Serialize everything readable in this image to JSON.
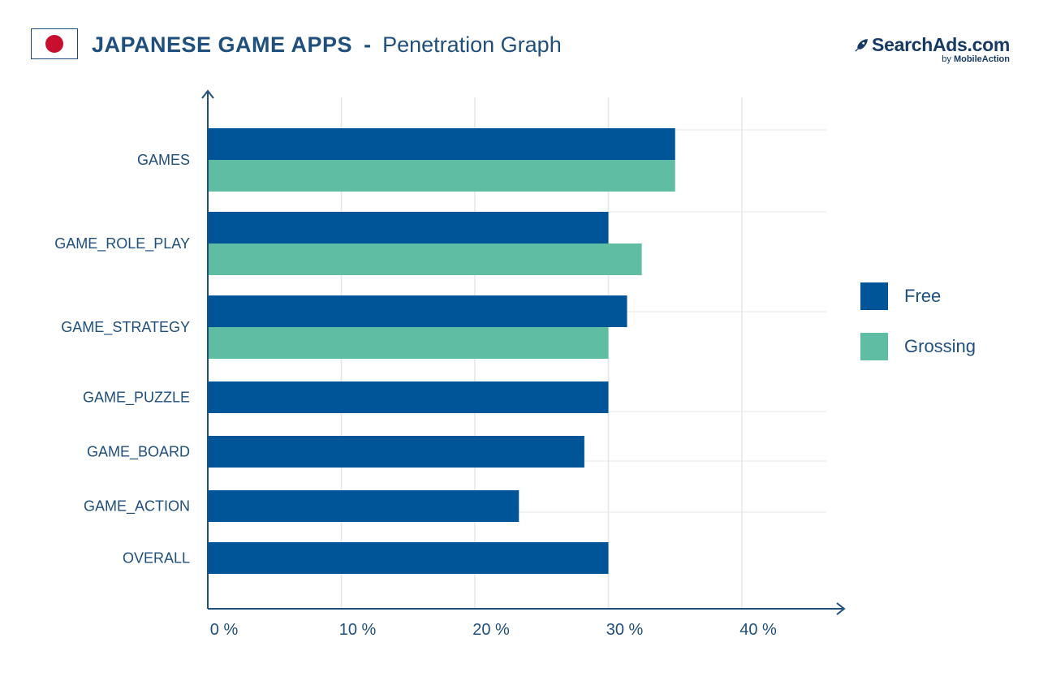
{
  "header": {
    "title_main": "JAPANESE GAME APPS",
    "title_dash": "-",
    "title_sub": "Penetration Graph",
    "flag_icon": "japan-flag-icon"
  },
  "brand": {
    "name": "SearchAds.com",
    "by_prefix": "by",
    "by_company": "MobileAction",
    "icon": "rocket-icon"
  },
  "colors": {
    "free": "#005599",
    "grossing": "#5fbda3",
    "text": "#1f4f7c",
    "grid": "#e3e6ea",
    "axis": "#1f4f7c"
  },
  "chart_data": {
    "type": "bar",
    "orientation": "horizontal",
    "categories": [
      "GAMES",
      "GAME_ROLE_PLAY",
      "GAME_STRATEGY",
      "GAME_PUZZLE",
      "GAME_BOARD",
      "GAME_ACTION",
      "OVERALL"
    ],
    "series": [
      {
        "name": "Free",
        "color": "#005599",
        "values": [
          35,
          30,
          31.4,
          30,
          28.2,
          23.3,
          30
        ]
      },
      {
        "name": "Grossing",
        "color": "#5fbda3",
        "values": [
          35,
          32.5,
          30,
          null,
          null,
          null,
          null
        ]
      }
    ],
    "xticks": [
      "0 %",
      "10 %",
      "20 %",
      "30 %",
      "40 %"
    ],
    "xtick_values": [
      0,
      10,
      20,
      30,
      40
    ],
    "xlim": [
      0,
      46.5
    ],
    "grid": true,
    "legend_position": "right"
  }
}
